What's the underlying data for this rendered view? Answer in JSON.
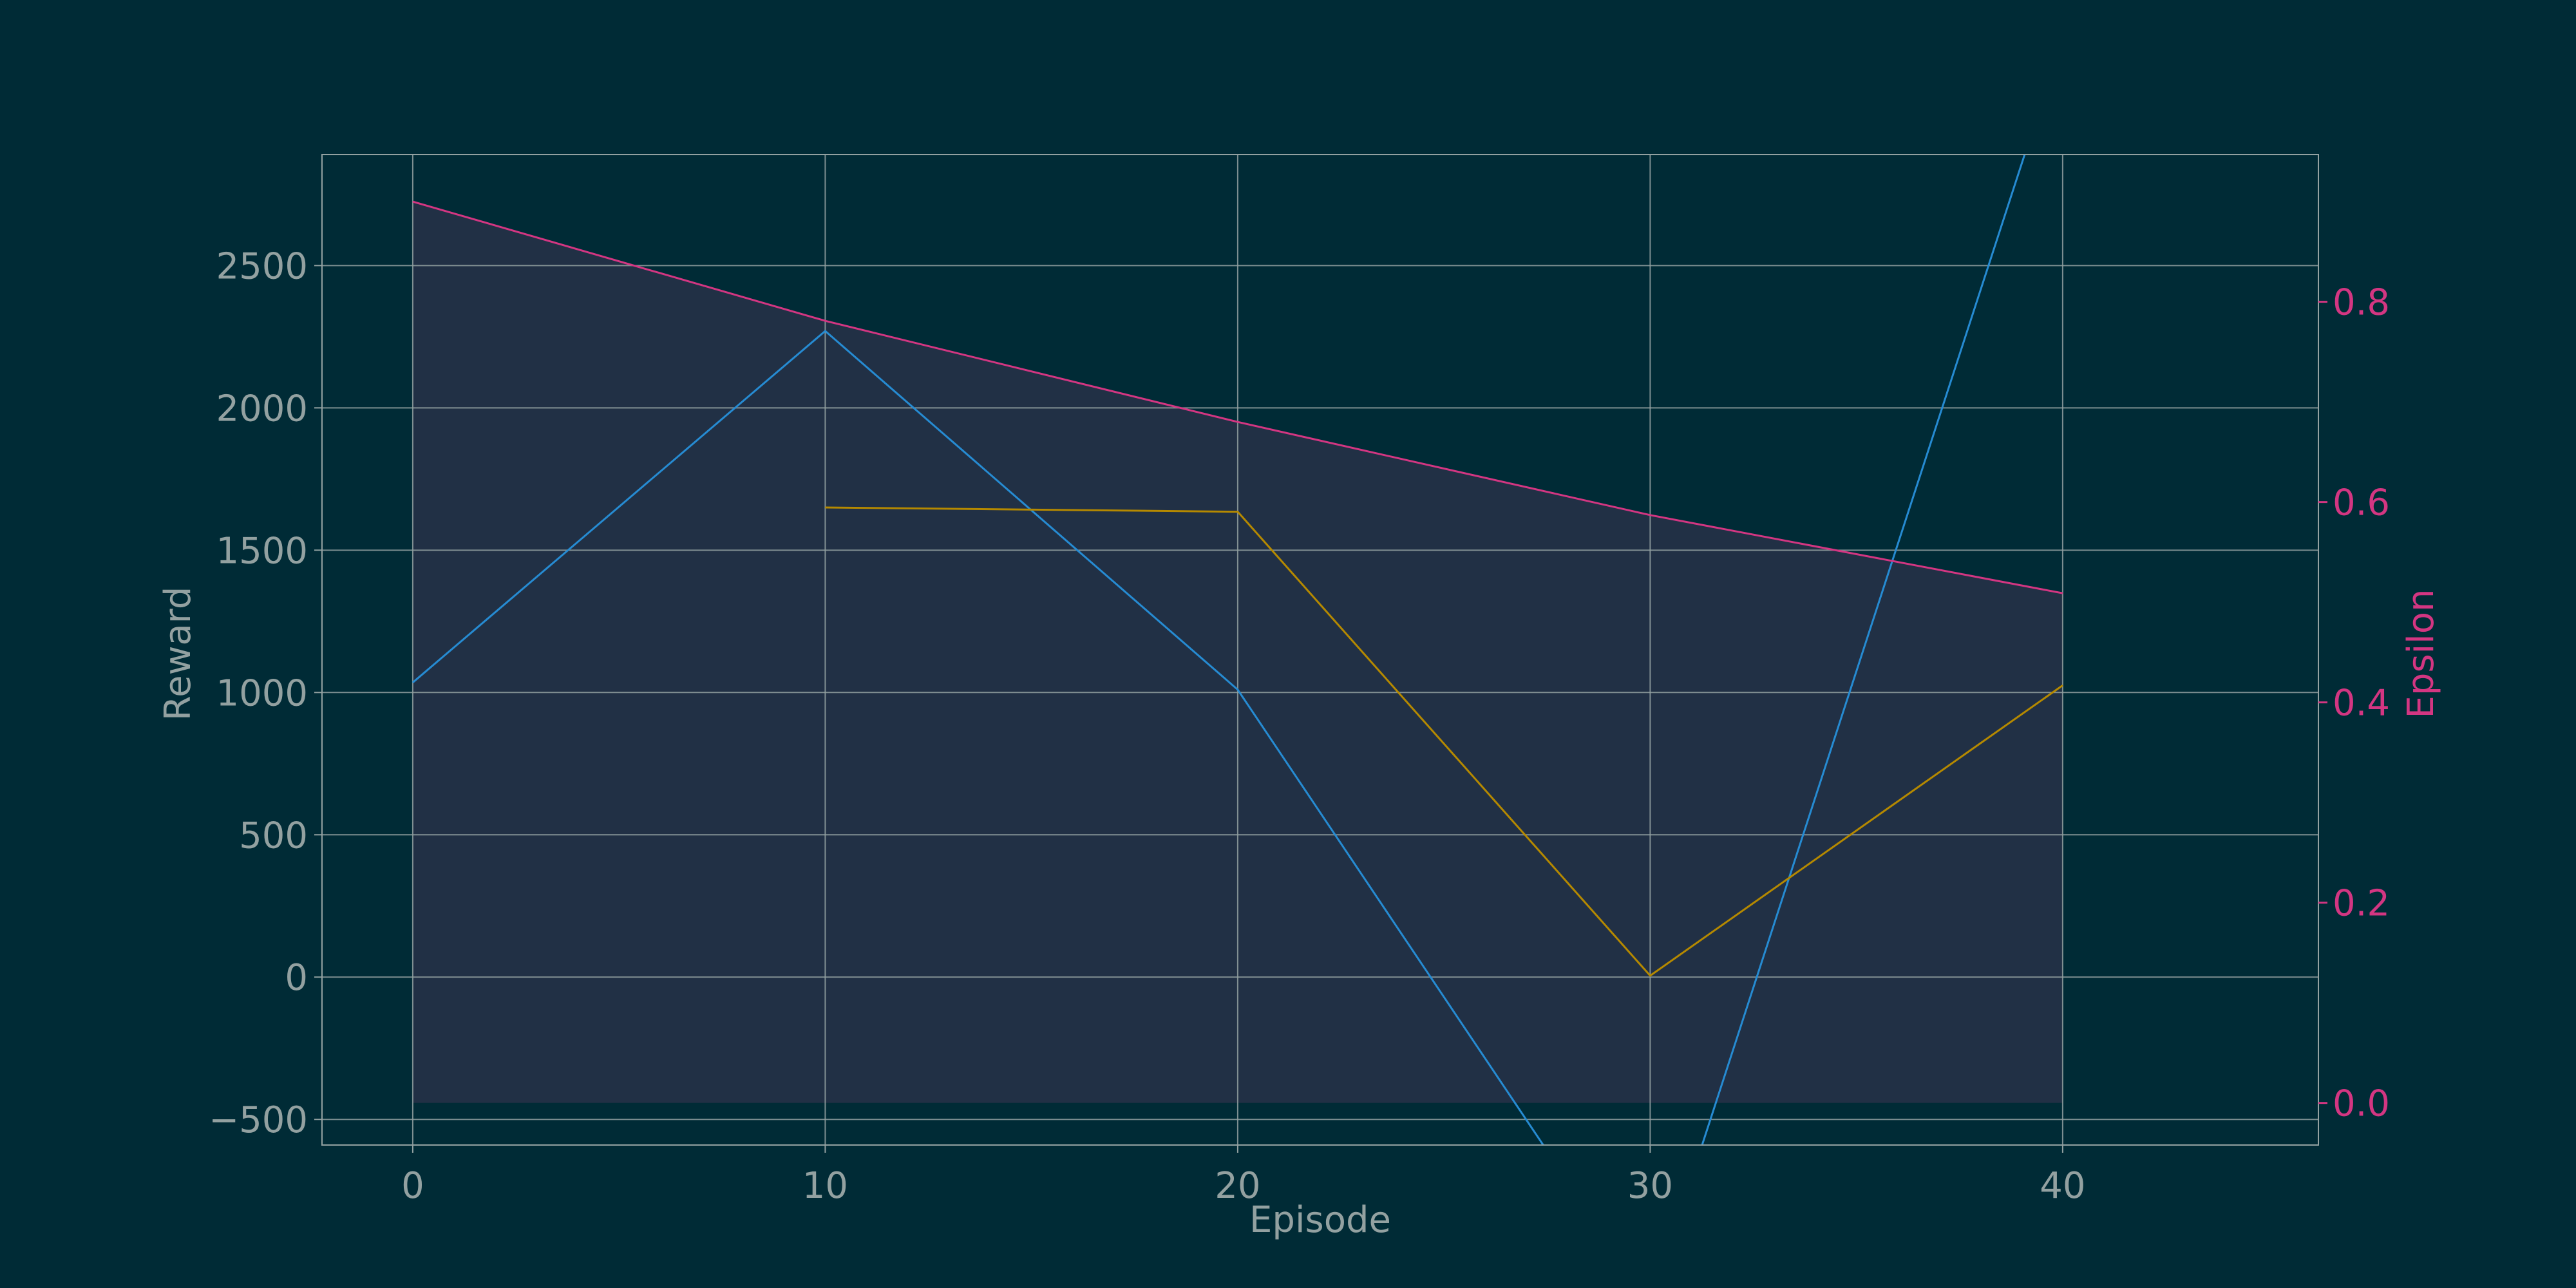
{
  "chart_data": {
    "type": "line",
    "xlabel": "Episode",
    "ylabel": "Reward",
    "y2label": "Epsilon",
    "xlim": [
      -2.2,
      46.2
    ],
    "ylim": [
      -590,
      2890
    ],
    "y2lim": [
      -0.042,
      0.947
    ],
    "xticks": [
      0,
      10,
      20,
      30,
      40
    ],
    "yticks": [
      -500,
      0,
      500,
      1000,
      1500,
      2000,
      2500
    ],
    "y2ticks": [
      0.0,
      0.2,
      0.4,
      0.6,
      0.8
    ],
    "grid": true,
    "series": [
      {
        "axis": "left",
        "color": "#268bd2",
        "x": [
          0,
          10,
          20,
          30,
          40
        ],
        "values": [
          1035,
          2270,
          1010,
          -1150,
          3300
        ]
      },
      {
        "axis": "left",
        "color": "#b58900",
        "x": [
          10,
          20,
          30,
          40
        ],
        "values": [
          1650,
          1635,
          5,
          1025
        ]
      },
      {
        "axis": "right",
        "color": "#d33682",
        "fill": true,
        "x": [
          0,
          10,
          20,
          30,
          40
        ],
        "values": [
          0.9,
          0.781,
          0.68,
          0.587,
          0.509
        ]
      }
    ],
    "colors": {
      "background": "#002b36",
      "text": "#93a1a1",
      "grid": "#93a1a1",
      "epsilon_axis": "#d33682",
      "fill": "#4a3858"
    }
  }
}
